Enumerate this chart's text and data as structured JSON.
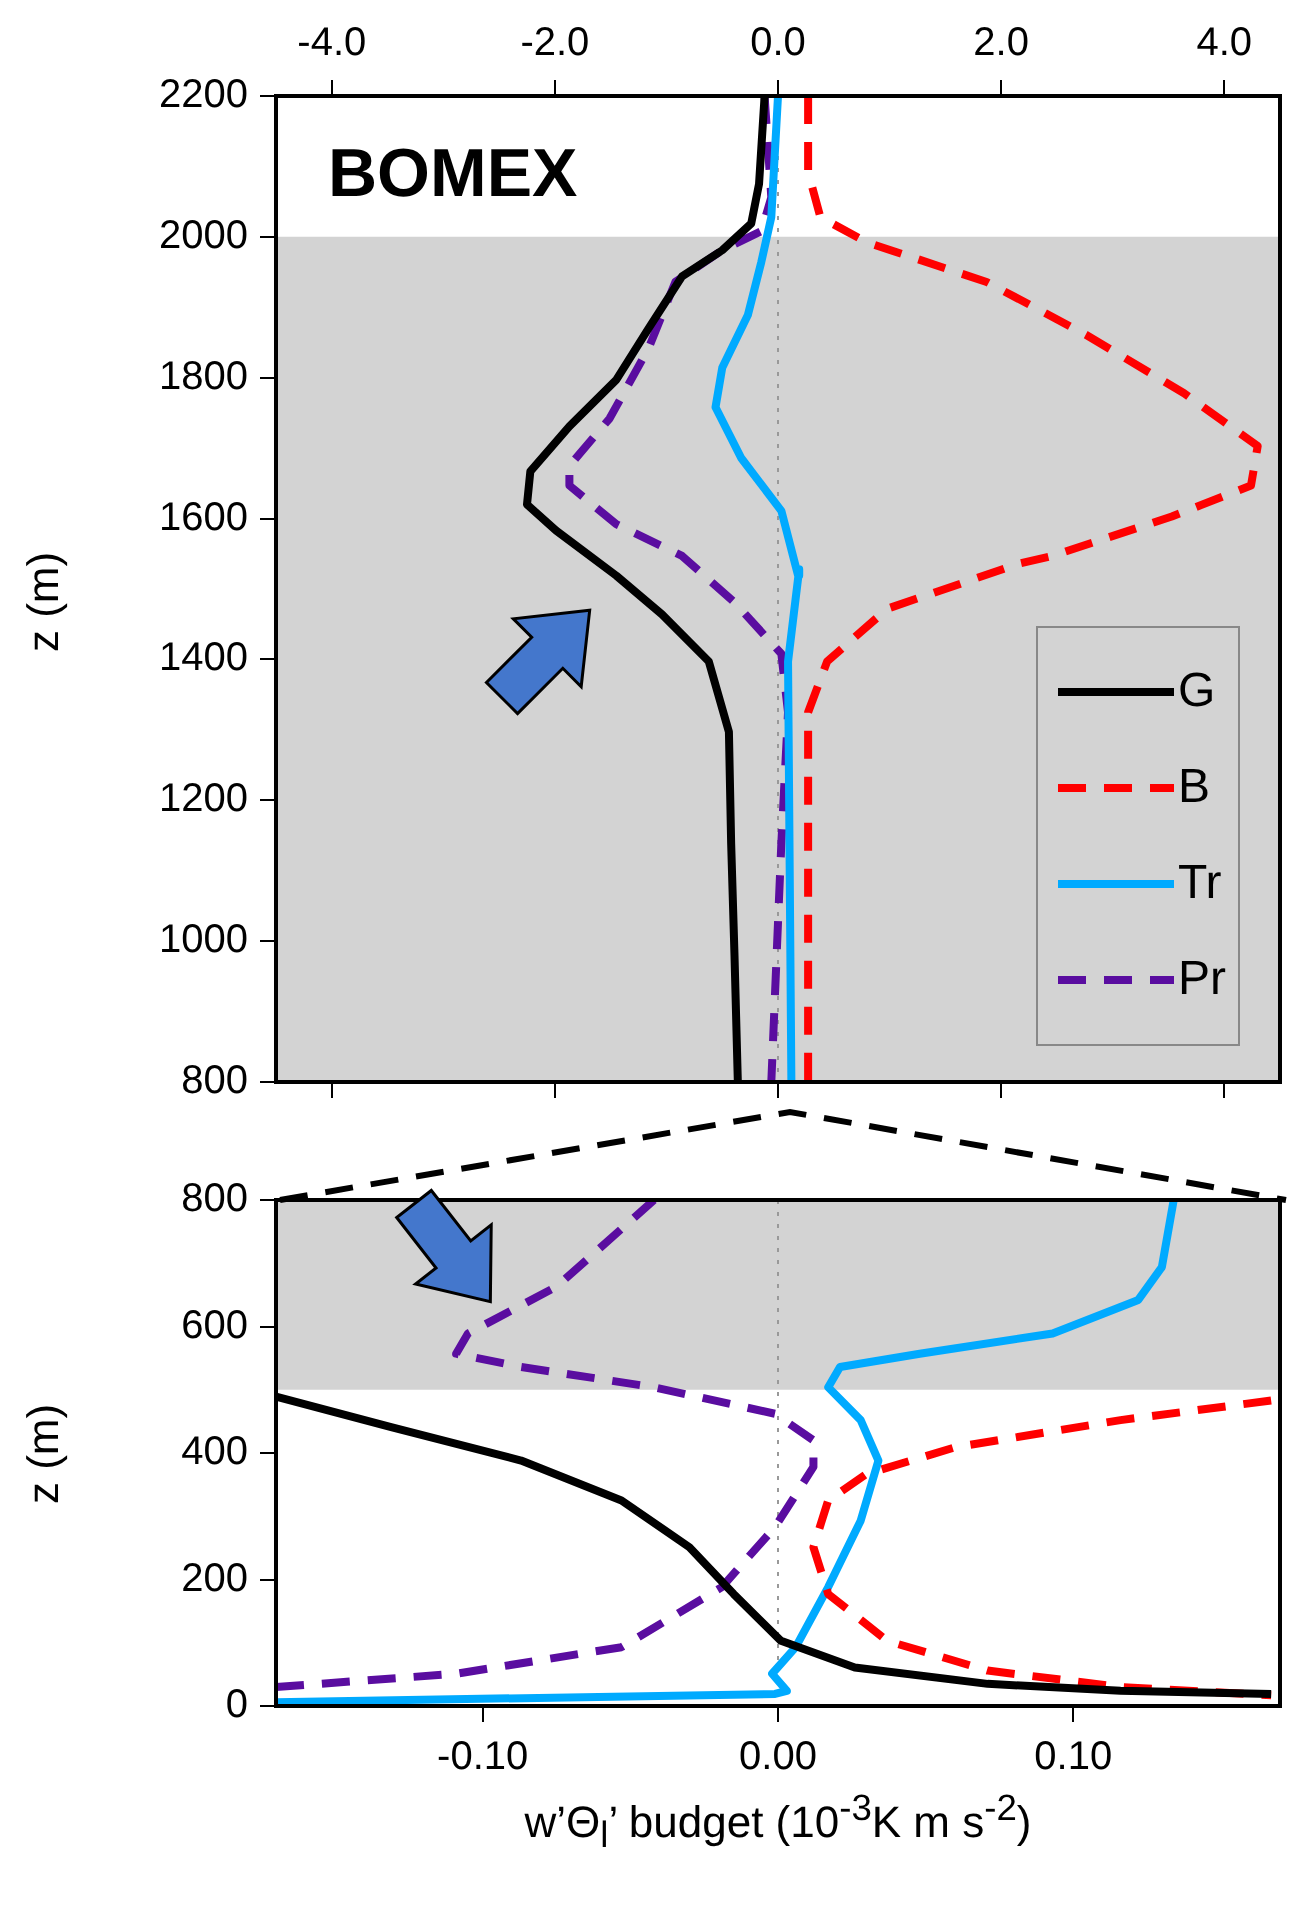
{
  "chart_data": [
    {
      "type": "line",
      "ylabel": "z (m)",
      "annotations": [
        "BOMEX"
      ],
      "legend": "bottom right",
      "marker": "none",
      "xlim": [
        -4.5,
        4.5
      ],
      "xticks": [
        {
          "value": -4,
          "label": "-4.0"
        },
        {
          "value": -2,
          "label": "-2.0"
        },
        {
          "value": 0,
          "label": "0.0"
        },
        {
          "value": 2,
          "label": "2.0"
        },
        {
          "value": 4,
          "label": "4.0"
        }
      ],
      "ylim": [
        800,
        2200
      ],
      "yticks": [
        800,
        1000,
        1200,
        1400,
        1600,
        1800,
        2000,
        2200
      ],
      "bands": [
        {
          "axis": "y",
          "from": 800,
          "to": 2000,
          "color": "#d3d3d3"
        }
      ],
      "ref_lines": [
        {
          "axis": "x",
          "value": 0,
          "color": "#999999",
          "line_style": "dotted"
        }
      ],
      "series": [
        {
          "name": "G",
          "color": "#000000",
          "line_style": "solid",
          "x": [
            -0.12,
            -0.17,
            -0.24,
            -0.5,
            -0.86,
            -1.16,
            -1.45,
            -1.87,
            -2.22,
            -2.25,
            -1.99,
            -1.45,
            -1.04,
            -0.62,
            -0.44,
            -0.42,
            -0.39,
            -0.36
          ],
          "values": [
            2200,
            2075,
            2019,
            1981,
            1944,
            1870,
            1797,
            1731,
            1667,
            1620,
            1583,
            1519,
            1464,
            1397,
            1297,
            1139,
            980,
            800
          ]
        },
        {
          "name": "B",
          "color": "#ff0000",
          "line_style": "dashed",
          "x": [
            0.27,
            0.27,
            0.38,
            0.8,
            1.87,
            2.76,
            3.64,
            4.3,
            4.24,
            3.53,
            2.46,
            2.16,
            0.98,
            0.44,
            0.27,
            0.27
          ],
          "values": [
            2200,
            2092,
            2028,
            1992,
            1936,
            1861,
            1778,
            1703,
            1647,
            1603,
            1547,
            1536,
            1472,
            1397,
            1325,
            800
          ]
        },
        {
          "name": "Tr",
          "color": "#00aaff",
          "line_style": "solid",
          "x": [
            0.0,
            -0.06,
            -0.15,
            -0.27,
            -0.5,
            -0.56,
            -0.33,
            0.03,
            0.18,
            0.19,
            0.09,
            0.12
          ],
          "values": [
            2200,
            2028,
            1964,
            1889,
            1814,
            1758,
            1686,
            1611,
            1519,
            1528,
            1397,
            800
          ]
        },
        {
          "name": "Pr",
          "color": "#5a0da0",
          "line_style": "dashed",
          "x": [
            -0.12,
            -0.06,
            -0.15,
            -0.5,
            -0.92,
            -1.16,
            -1.51,
            -1.87,
            -1.87,
            -1.45,
            -0.86,
            -0.39,
            0.03,
            0.09,
            0.03,
            -0.06
          ],
          "values": [
            2200,
            2056,
            2008,
            1981,
            1936,
            1842,
            1742,
            1675,
            1647,
            1592,
            1547,
            1481,
            1408,
            1325,
            1139,
            800
          ]
        }
      ]
    },
    {
      "type": "line",
      "ylabel": "z (m)",
      "xlabel": "w’Θ$_{l}$’ budget (10$^{-3}$K m s$^{-2}$)",
      "marker": "none",
      "xlim": [
        -0.17,
        0.17
      ],
      "xticks": [
        {
          "value": -0.1,
          "label": "-0.10"
        },
        {
          "value": 0,
          "label": "0.00"
        },
        {
          "value": 0.1,
          "label": "0.10"
        }
      ],
      "ylim": [
        0,
        800
      ],
      "yticks": [
        0,
        200,
        400,
        600,
        800
      ],
      "bands": [
        {
          "axis": "y",
          "from": 500,
          "to": 800,
          "color": "#d3d3d3"
        }
      ],
      "ref_lines": [
        {
          "axis": "x",
          "value": 0,
          "color": "#999999",
          "line_style": "dotted"
        }
      ],
      "series": [
        {
          "color": "#000000",
          "line_style": "solid",
          "x": [
            -0.17,
            -0.131,
            -0.087,
            -0.053,
            -0.03,
            -0.015,
            0.001,
            0.026,
            0.071,
            0.116,
            0.167
          ],
          "values": [
            489,
            441,
            388,
            325,
            251,
            177,
            103,
            61,
            35,
            24,
            19
          ]
        },
        {
          "color": "#ff0000",
          "line_style": "dashed",
          "x": [
            0.167,
            0.116,
            0.06,
            0.03,
            0.017,
            0.012,
            0.017,
            0.037,
            0.071,
            0.116,
            0.167
          ],
          "values": [
            483,
            452,
            409,
            367,
            325,
            251,
            177,
            103,
            56,
            30,
            17
          ]
        },
        {
          "color": "#00aaff",
          "line_style": "solid",
          "x": [
            -0.17,
            -0.001,
            0.003,
            -0.002,
            0.006,
            0.017,
            0.028,
            0.034,
            0.028,
            0.017,
            0.021,
            0.048,
            0.093,
            0.122,
            0.13,
            0.134
          ],
          "values": [
            6,
            19,
            24,
            51,
            93,
            188,
            293,
            388,
            452,
            504,
            536,
            557,
            589,
            642,
            694,
            800
          ]
        },
        {
          "color": "#5a0da0",
          "line_style": "dashed",
          "x": [
            -0.17,
            -0.109,
            -0.053,
            -0.019,
            -0.001,
            0.012,
            0.012,
            -0.001,
            -0.042,
            -0.087,
            -0.109,
            -0.105,
            -0.075,
            -0.042
          ],
          "values": [
            30,
            51,
            93,
            188,
            283,
            378,
            420,
            462,
            504,
            536,
            557,
            589,
            663,
            800
          ]
        }
      ]
    }
  ]
}
